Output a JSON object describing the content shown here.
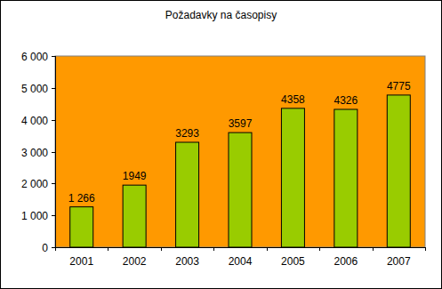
{
  "chart_data": {
    "type": "bar",
    "title": "Požadavky na časopisy",
    "categories": [
      "2001",
      "2002",
      "2003",
      "2004",
      "2005",
      "2006",
      "2007"
    ],
    "values": [
      1266,
      1949,
      3293,
      3597,
      4358,
      4326,
      4775
    ],
    "value_labels": [
      "1 266",
      "1949",
      "3293",
      "3597",
      "4358",
      "4326",
      "4775"
    ],
    "data_labels": true,
    "color": "#99cc00",
    "ylim": [
      0,
      6000
    ],
    "yticks": [
      {
        "value": 0,
        "label": "0"
      },
      {
        "value": 1000,
        "label": "1 000"
      },
      {
        "value": 2000,
        "label": "2 000"
      },
      {
        "value": 3000,
        "label": "3 000"
      },
      {
        "value": 4000,
        "label": "4 000"
      },
      {
        "value": 5000,
        "label": "5 000"
      },
      {
        "value": 6000,
        "label": "6 000"
      }
    ],
    "grid": false
  }
}
